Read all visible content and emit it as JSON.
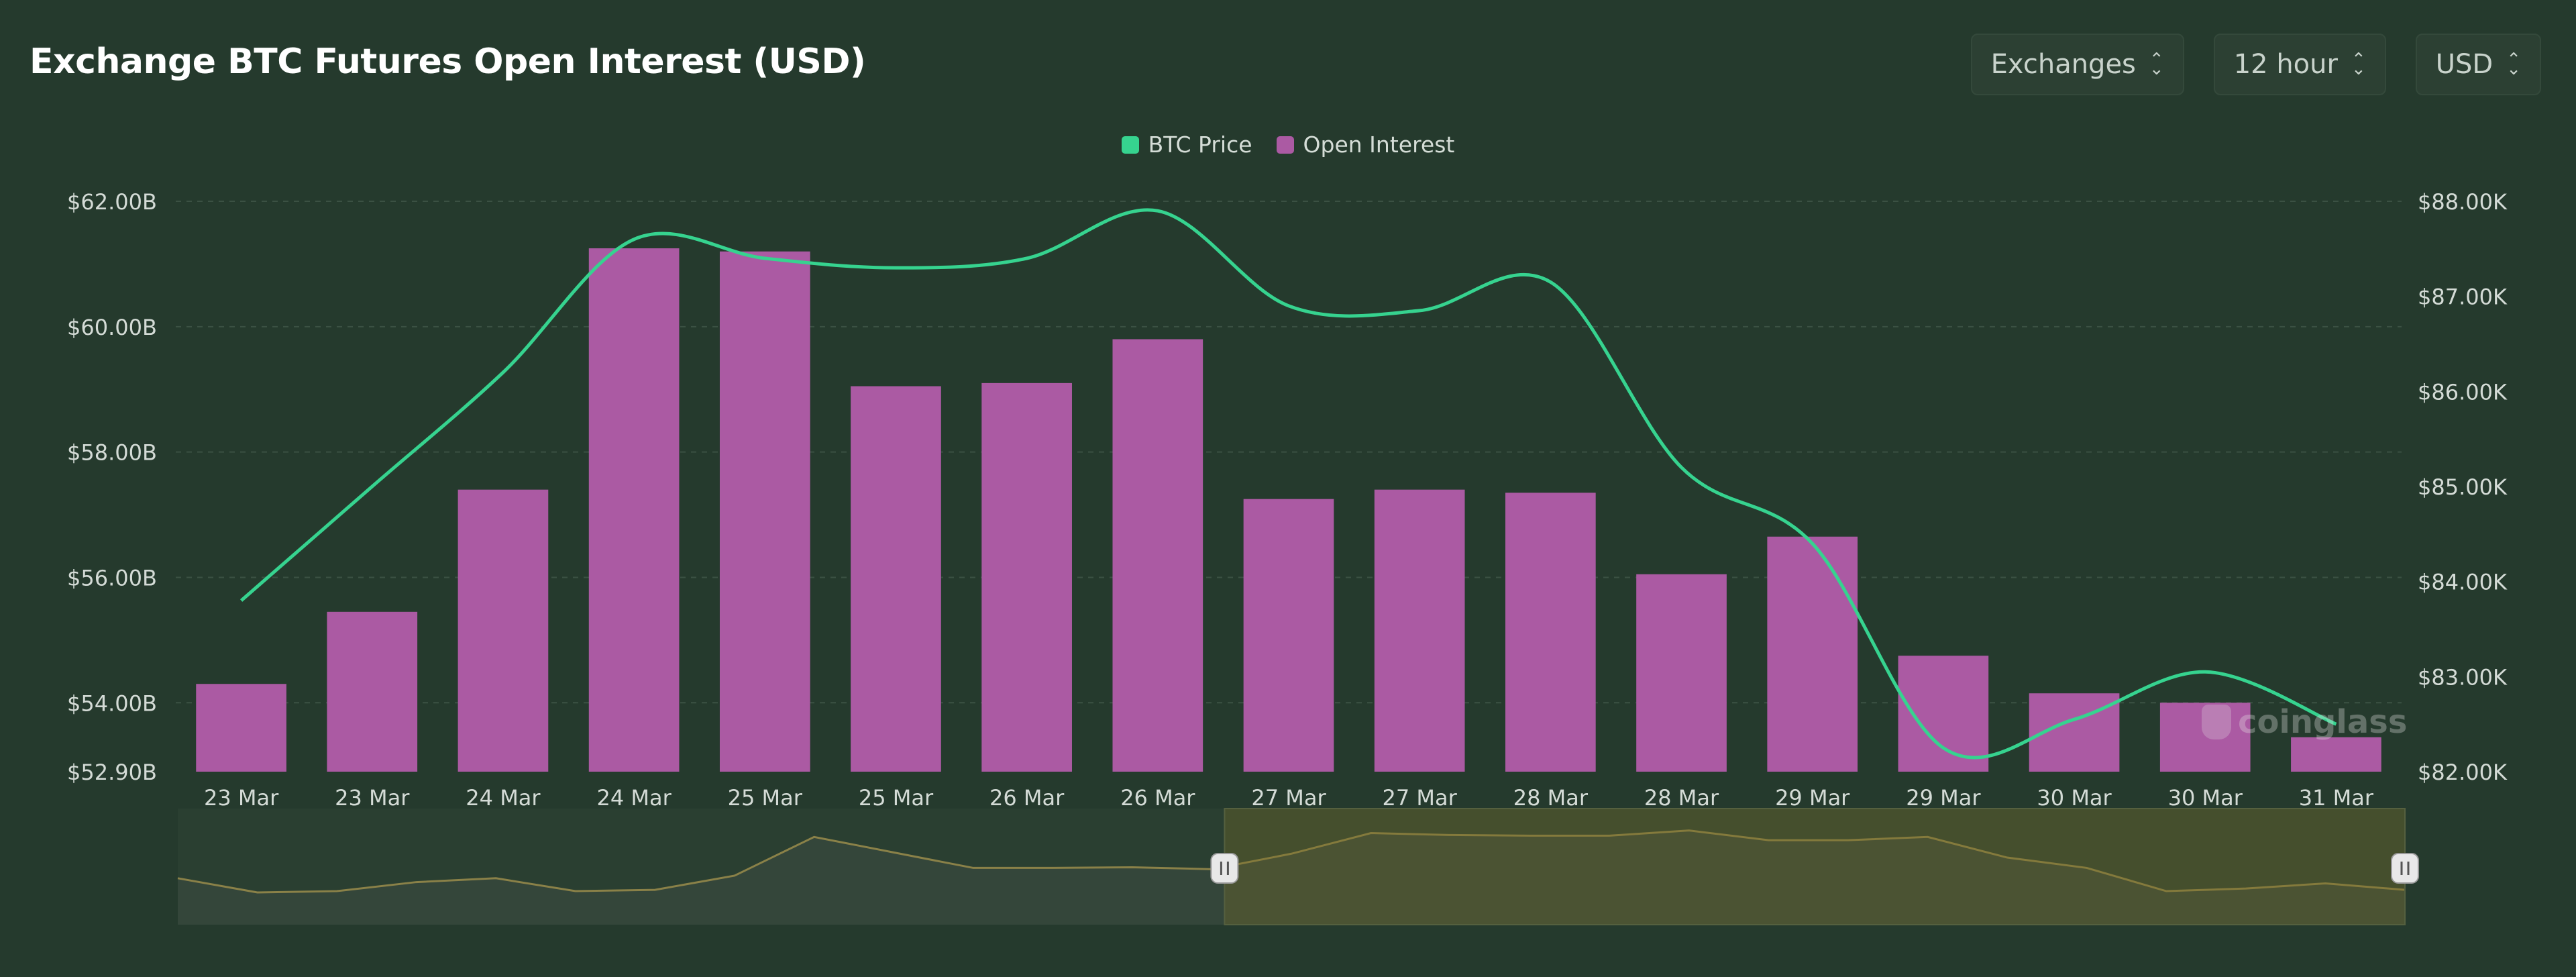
{
  "header": {
    "title": "Exchange BTC Futures Open Interest (USD)",
    "controls": [
      {
        "label": "Exchanges"
      },
      {
        "label": "12 hour"
      },
      {
        "label": "USD"
      }
    ]
  },
  "watermark": "coinglass",
  "colors": {
    "background": "#253a2d",
    "btc_price_line": "#36d38f",
    "open_interest_bar": "#ab5aa3",
    "navigator_fill": "#4a4a2e",
    "navigator_line": "#8a8148"
  },
  "chart_data": {
    "type": "bar",
    "title": "Exchange BTC Futures Open Interest (USD)",
    "categories": [
      "23 Mar",
      "23 Mar",
      "24 Mar",
      "24 Mar",
      "25 Mar",
      "25 Mar",
      "26 Mar",
      "26 Mar",
      "27 Mar",
      "27 Mar",
      "28 Mar",
      "28 Mar",
      "29 Mar",
      "29 Mar",
      "30 Mar",
      "30 Mar",
      "31 Mar"
    ],
    "series": [
      {
        "name": "Open Interest",
        "type": "bar",
        "axis": "left",
        "values": [
          54.3,
          55.45,
          57.4,
          61.25,
          61.2,
          59.05,
          59.1,
          59.8,
          57.25,
          57.4,
          57.35,
          56.05,
          56.65,
          54.75,
          54.15,
          54.0,
          53.45
        ]
      },
      {
        "name": "BTC Price",
        "type": "line",
        "axis": "right",
        "values": [
          83800,
          85000,
          86200,
          87600,
          87400,
          87300,
          87400,
          87900,
          86900,
          86850,
          87150,
          85200,
          84400,
          82250,
          82550,
          83050,
          82500
        ]
      }
    ],
    "y_left": {
      "ticks": [
        "$52.90B",
        "$54.00B",
        "$56.00B",
        "$58.00B",
        "$60.00B",
        "$62.00B"
      ],
      "tick_values": [
        52.9,
        54,
        56,
        58,
        60,
        62
      ],
      "range": [
        52.9,
        62
      ]
    },
    "y_right": {
      "ticks": [
        "$82.00K",
        "$83.00K",
        "$84.00K",
        "$85.00K",
        "$86.00K",
        "$87.00K",
        "$88.00K"
      ],
      "tick_values": [
        82000,
        83000,
        84000,
        85000,
        86000,
        87000,
        88000
      ],
      "range": [
        82000,
        88000
      ]
    },
    "legend": {
      "placement": "top-center",
      "entries": [
        {
          "label": "BTC Price"
        },
        {
          "label": "Open Interest"
        }
      ]
    },
    "grid": true,
    "navigator": {
      "values": [
        56.6,
        55.5,
        55.6,
        56.3,
        56.6,
        55.6,
        55.7,
        56.8,
        59.8,
        58.6,
        57.4,
        57.4,
        57.45,
        57.3,
        58.5,
        60.1,
        59.95,
        59.9,
        59.9,
        60.3,
        59.55,
        59.55,
        59.8,
        58.2,
        57.4,
        55.6,
        55.8,
        56.2,
        55.7
      ],
      "range": [
        53,
        62
      ],
      "selected_range": [
        0.47,
        1.0
      ]
    }
  }
}
